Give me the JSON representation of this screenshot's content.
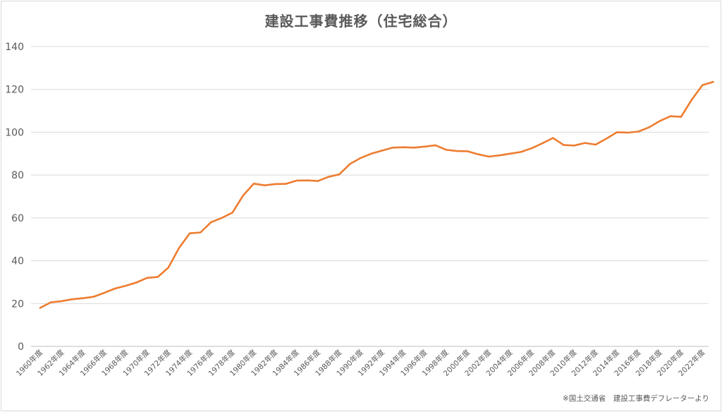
{
  "chart_data": {
    "type": "line",
    "title": "建設工事費推移（住宅総合）",
    "source_note": "※国土交通省　建設工事費デフレーターより",
    "ylim": [
      0,
      140
    ],
    "yticks": [
      0,
      20,
      40,
      60,
      80,
      100,
      120,
      140
    ],
    "grid": true,
    "line_color": "#ed7d31",
    "x_tick_labels": [
      "1960年度",
      "1962年度",
      "1964年度",
      "1966年度",
      "1968年度",
      "1970年度",
      "1972年度",
      "1974年度",
      "1976年度",
      "1978年度",
      "1980年度",
      "1982年度",
      "1984年度",
      "1986年度",
      "1988年度",
      "1990年度",
      "1992年度",
      "1994年度",
      "1996年度",
      "1998年度",
      "2000年度",
      "2002年度",
      "2004年度",
      "2006年度",
      "2008年度",
      "2010年度",
      "2012年度",
      "2014年度",
      "2016年度",
      "2018年度",
      "2020年度",
      "2022年度"
    ],
    "x": [
      1960,
      1961,
      1962,
      1963,
      1964,
      1965,
      1966,
      1967,
      1968,
      1969,
      1970,
      1971,
      1972,
      1973,
      1974,
      1975,
      1976,
      1977,
      1978,
      1979,
      1980,
      1981,
      1982,
      1983,
      1984,
      1985,
      1986,
      1987,
      1988,
      1989,
      1990,
      1991,
      1992,
      1993,
      1994,
      1995,
      1996,
      1997,
      1998,
      1999,
      2000,
      2001,
      2002,
      2003,
      2004,
      2005,
      2006,
      2007,
      2008,
      2009,
      2010,
      2011,
      2012,
      2013,
      2014,
      2015,
      2016,
      2017,
      2018,
      2019,
      2020,
      2021,
      2022,
      2023
    ],
    "values": [
      18.0,
      20.6,
      21.1,
      22.0,
      22.5,
      23.2,
      25.0,
      27.0,
      28.3,
      29.8,
      32.0,
      32.4,
      36.8,
      46.0,
      52.8,
      53.2,
      58.0,
      60.0,
      62.5,
      70.5,
      76.0,
      75.2,
      75.8,
      75.9,
      77.4,
      77.5,
      77.2,
      79.2,
      80.3,
      85.2,
      88.0,
      90.0,
      91.4,
      92.8,
      93.0,
      92.8,
      93.3,
      93.9,
      91.8,
      91.2,
      91.1,
      89.7,
      88.6,
      89.2,
      90.0,
      90.8,
      92.5,
      94.8,
      97.3,
      94.0,
      93.8,
      95.0,
      94.2,
      97.0,
      100.0,
      99.8,
      100.3,
      102.3,
      105.2,
      107.5,
      107.2,
      115.2,
      122.0,
      123.5
    ]
  }
}
